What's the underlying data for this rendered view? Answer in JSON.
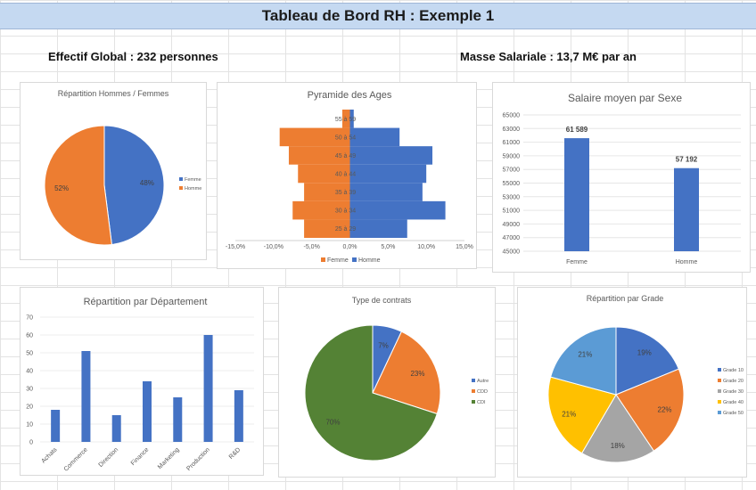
{
  "header": {
    "title": "Tableau de Bord RH : Exemple 1"
  },
  "kpis": {
    "effectif": "Effectif Global : 232 personnes",
    "masse": "Masse Salariale : 13,7 M€ par an"
  },
  "colors": {
    "blue": "#4472c4",
    "orange": "#ed7d31",
    "gray": "#a5a5a5",
    "yellow": "#ffc000",
    "lightblue": "#5b9bd5",
    "green": "#548235"
  },
  "chart_data": [
    {
      "id": "gender",
      "type": "pie",
      "title": "Répartition Hommes / Femmes",
      "labels": [
        "Femme",
        "Homme"
      ],
      "values": [
        48,
        52
      ],
      "data_labels": [
        "48%",
        "52%"
      ],
      "legend": "right"
    },
    {
      "id": "pyramid",
      "type": "bar",
      "orientation": "horizontal",
      "title": "Pyramide des Ages",
      "categories": [
        "25 à 29",
        "30 à 34",
        "35 à 39",
        "40 à 44",
        "45 à 49",
        "50 à 54",
        "55 à 59"
      ],
      "series": [
        {
          "name": "Femme",
          "values": [
            -6.0,
            -7.5,
            -6.0,
            -6.8,
            -8.0,
            -9.2,
            -1.0
          ]
        },
        {
          "name": "Homme",
          "values": [
            7.5,
            12.5,
            9.5,
            10.0,
            10.8,
            6.5,
            0.5
          ]
        }
      ],
      "xticks": [
        "-15,0%",
        "-10,0%",
        "-5,0%",
        "0,0%",
        "5,0%",
        "10,0%",
        "15,0%"
      ],
      "xlim": [
        -15,
        15
      ],
      "legend": "bottom"
    },
    {
      "id": "salary",
      "type": "bar",
      "title": "Salaire moyen par Sexe",
      "categories": [
        "Femme",
        "Homme"
      ],
      "values": [
        61589,
        57192
      ],
      "data_labels": [
        "61 589",
        "57 192"
      ],
      "yticks": [
        "45000",
        "47000",
        "49000",
        "51000",
        "53000",
        "55000",
        "57000",
        "59000",
        "61000",
        "63000",
        "65000"
      ],
      "ylim": [
        45000,
        65000
      ]
    },
    {
      "id": "departments",
      "type": "bar",
      "title": "Répartition par Département",
      "categories": [
        "Achats",
        "Commerce",
        "Direction",
        "Finance",
        "Marketing",
        "Production",
        "R&D"
      ],
      "values": [
        18,
        51,
        15,
        34,
        25,
        60,
        29
      ],
      "yticks": [
        "0",
        "10",
        "20",
        "30",
        "40",
        "50",
        "60",
        "70"
      ],
      "ylim": [
        0,
        70
      ]
    },
    {
      "id": "contracts",
      "type": "pie",
      "title": "Type de contrats",
      "labels": [
        "Autre",
        "CDD",
        "CDI"
      ],
      "values": [
        7,
        23,
        70
      ],
      "data_labels": [
        "7%",
        "23%",
        "70%"
      ],
      "legend": "right"
    },
    {
      "id": "grades",
      "type": "pie",
      "title": "Répartition par Grade",
      "labels": [
        "Grade 10",
        "Grade 20",
        "Grade 30",
        "Grade 40",
        "Grade 50"
      ],
      "values": [
        19,
        22,
        18,
        21,
        21
      ],
      "data_labels": [
        "19%",
        "22%",
        "18%",
        "21%",
        "21%"
      ],
      "legend": "right"
    }
  ]
}
